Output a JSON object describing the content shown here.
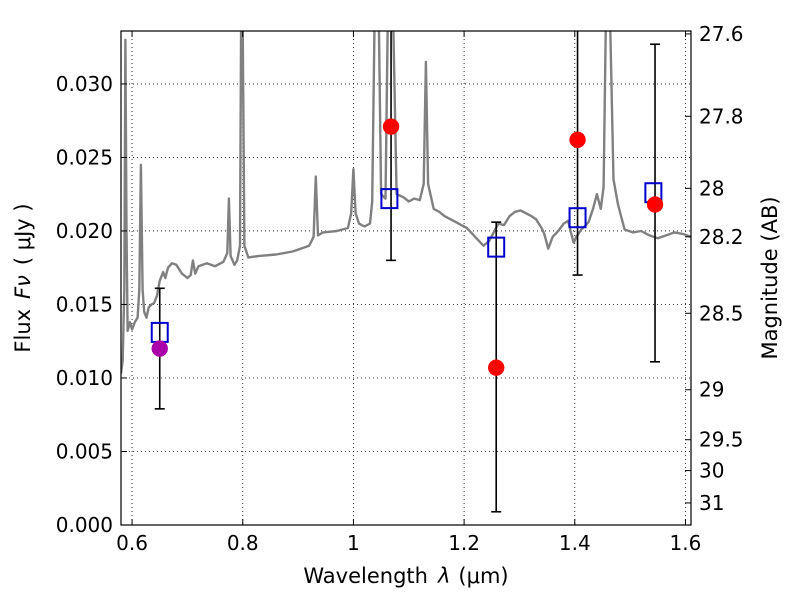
{
  "chart_data": {
    "type": "scatter",
    "xlabel_text": "Wavelength",
    "xlabel_symbol": "λ",
    "xlabel_unit": "(μm)",
    "ylabel_text": "Flux",
    "ylabel_symbol": "Fν",
    "ylabel_unit": "( μJy )",
    "y2label": "Magnitude (AB)",
    "xlim": [
      0.58,
      1.61
    ],
    "ylim": [
      0.0,
      0.0336
    ],
    "grid": true,
    "x_ticks": [
      0.6,
      0.8,
      1.0,
      1.2,
      1.4,
      1.6
    ],
    "x_tick_labels": [
      "0.6",
      "0.8",
      "1",
      "1.2",
      "1.4",
      "1.6"
    ],
    "y_ticks": [
      0.0,
      0.005,
      0.01,
      0.015,
      0.02,
      0.025,
      0.03
    ],
    "y_tick_labels": [
      "0.000",
      "0.005",
      "0.010",
      "0.015",
      "0.020",
      "0.025",
      "0.030"
    ],
    "y2_ticks": [
      {
        "label": "27.6",
        "flux": 0.0334
      },
      {
        "label": "27.8",
        "flux": 0.0278
      },
      {
        "label": "28",
        "flux": 0.0229
      },
      {
        "label": "28.2",
        "flux": 0.0196
      },
      {
        "label": "28.5",
        "flux": 0.0144
      },
      {
        "label": "29",
        "flux": 0.0092
      },
      {
        "label": "29.5",
        "flux": 0.0058
      },
      {
        "label": "30",
        "flux": 0.0037
      },
      {
        "label": "31",
        "flux": 0.0015
      }
    ],
    "spectrum": {
      "color": "#808080",
      "points": [
        [
          0.58,
          0.0103
        ],
        [
          0.583,
          0.0112
        ],
        [
          0.586,
          0.016
        ],
        [
          0.588,
          0.033
        ],
        [
          0.59,
          0.02
        ],
        [
          0.592,
          0.0132
        ],
        [
          0.596,
          0.0138
        ],
        [
          0.6,
          0.0133
        ],
        [
          0.605,
          0.0138
        ],
        [
          0.61,
          0.0141
        ],
        [
          0.613,
          0.016
        ],
        [
          0.616,
          0.0245
        ],
        [
          0.619,
          0.016
        ],
        [
          0.622,
          0.0145
        ],
        [
          0.626,
          0.0141
        ],
        [
          0.63,
          0.0148
        ],
        [
          0.635,
          0.015
        ],
        [
          0.64,
          0.0151
        ],
        [
          0.645,
          0.0156
        ],
        [
          0.65,
          0.0166
        ],
        [
          0.656,
          0.0172
        ],
        [
          0.66,
          0.0168
        ],
        [
          0.665,
          0.0175
        ],
        [
          0.672,
          0.0178
        ],
        [
          0.68,
          0.0177
        ],
        [
          0.69,
          0.0171
        ],
        [
          0.7,
          0.0168
        ],
        [
          0.706,
          0.017
        ],
        [
          0.71,
          0.018
        ],
        [
          0.714,
          0.0171
        ],
        [
          0.72,
          0.0176
        ],
        [
          0.735,
          0.0178
        ],
        [
          0.75,
          0.0176
        ],
        [
          0.765,
          0.0179
        ],
        [
          0.772,
          0.0185
        ],
        [
          0.775,
          0.0222
        ],
        [
          0.778,
          0.0183
        ],
        [
          0.785,
          0.0177
        ],
        [
          0.79,
          0.018
        ],
        [
          0.795,
          0.019
        ],
        [
          0.797,
          0.034
        ],
        [
          0.8,
          0.034
        ],
        [
          0.803,
          0.019
        ],
        [
          0.81,
          0.0182
        ],
        [
          0.83,
          0.0183
        ],
        [
          0.86,
          0.0184
        ],
        [
          0.89,
          0.0186
        ],
        [
          0.92,
          0.019
        ],
        [
          0.928,
          0.0196
        ],
        [
          0.932,
          0.0237
        ],
        [
          0.936,
          0.0197
        ],
        [
          0.945,
          0.0199
        ],
        [
          0.97,
          0.02
        ],
        [
          0.99,
          0.0202
        ],
        [
          0.996,
          0.0212
        ],
        [
          1.0,
          0.0242
        ],
        [
          1.004,
          0.0212
        ],
        [
          1.01,
          0.0205
        ],
        [
          1.02,
          0.0203
        ],
        [
          1.03,
          0.0205
        ],
        [
          1.034,
          0.022
        ],
        [
          1.038,
          0.034
        ],
        [
          1.046,
          0.034
        ],
        [
          1.05,
          0.0225
        ],
        [
          1.058,
          0.0222
        ],
        [
          1.062,
          0.034
        ],
        [
          1.072,
          0.034
        ],
        [
          1.078,
          0.0225
        ],
        [
          1.09,
          0.0223
        ],
        [
          1.1,
          0.022
        ],
        [
          1.11,
          0.0222
        ],
        [
          1.12,
          0.0221
        ],
        [
          1.127,
          0.0232
        ],
        [
          1.131,
          0.0315
        ],
        [
          1.135,
          0.0232
        ],
        [
          1.145,
          0.0215
        ],
        [
          1.155,
          0.0213
        ],
        [
          1.165,
          0.021
        ],
        [
          1.175,
          0.0208
        ],
        [
          1.185,
          0.0206
        ],
        [
          1.195,
          0.0204
        ],
        [
          1.205,
          0.0202
        ],
        [
          1.215,
          0.0198
        ],
        [
          1.225,
          0.0194
        ],
        [
          1.235,
          0.019
        ],
        [
          1.245,
          0.0193
        ],
        [
          1.255,
          0.02
        ],
        [
          1.262,
          0.0205
        ],
        [
          1.272,
          0.0204
        ],
        [
          1.282,
          0.021
        ],
        [
          1.292,
          0.0213
        ],
        [
          1.302,
          0.0214
        ],
        [
          1.312,
          0.0212
        ],
        [
          1.322,
          0.021
        ],
        [
          1.33,
          0.0208
        ],
        [
          1.34,
          0.0202
        ],
        [
          1.345,
          0.0198
        ],
        [
          1.352,
          0.0188
        ],
        [
          1.36,
          0.0196
        ],
        [
          1.37,
          0.02
        ],
        [
          1.38,
          0.0205
        ],
        [
          1.388,
          0.0207
        ],
        [
          1.393,
          0.0199
        ],
        [
          1.398,
          0.0192
        ],
        [
          1.403,
          0.0196
        ],
        [
          1.412,
          0.0201
        ],
        [
          1.42,
          0.0204
        ],
        [
          1.425,
          0.0206
        ],
        [
          1.433,
          0.0215
        ],
        [
          1.44,
          0.0225
        ],
        [
          1.447,
          0.0215
        ],
        [
          1.452,
          0.023
        ],
        [
          1.456,
          0.034
        ],
        [
          1.464,
          0.034
        ],
        [
          1.47,
          0.0235
        ],
        [
          1.478,
          0.0218
        ],
        [
          1.49,
          0.0201
        ],
        [
          1.505,
          0.0199
        ],
        [
          1.52,
          0.02
        ],
        [
          1.535,
          0.0197
        ],
        [
          1.55,
          0.0195
        ],
        [
          1.565,
          0.0197
        ],
        [
          1.58,
          0.0199
        ],
        [
          1.595,
          0.0198
        ],
        [
          1.61,
          0.0196
        ]
      ]
    },
    "series": [
      {
        "marker": "square",
        "color": "#0000cc",
        "points": [
          {
            "x": 0.65,
            "y": 0.0131
          },
          {
            "x": 1.065,
            "y": 0.0222
          },
          {
            "x": 1.258,
            "y": 0.0189
          },
          {
            "x": 1.405,
            "y": 0.0209
          },
          {
            "x": 1.542,
            "y": 0.0226
          }
        ]
      },
      {
        "marker": "circle",
        "color": "#ff0000",
        "points": [
          {
            "x": 1.068,
            "y": 0.0271
          },
          {
            "x": 1.258,
            "y": 0.0107
          },
          {
            "x": 1.405,
            "y": 0.0262
          },
          {
            "x": 1.545,
            "y": 0.0218
          }
        ]
      },
      {
        "marker": "circle",
        "color": "#aa00aa",
        "points": [
          {
            "x": 0.65,
            "y": 0.012
          }
        ]
      }
    ],
    "errorbars": [
      {
        "x": 0.65,
        "low": 0.0079,
        "high": 0.0161
      },
      {
        "x": 1.068,
        "low": 0.018,
        "high": 0.034
      },
      {
        "x": 1.258,
        "low": 0.0009,
        "high": 0.0206
      },
      {
        "x": 1.405,
        "low": 0.017,
        "high": 0.034
      },
      {
        "x": 1.545,
        "low": 0.0111,
        "high": 0.0327
      }
    ]
  }
}
